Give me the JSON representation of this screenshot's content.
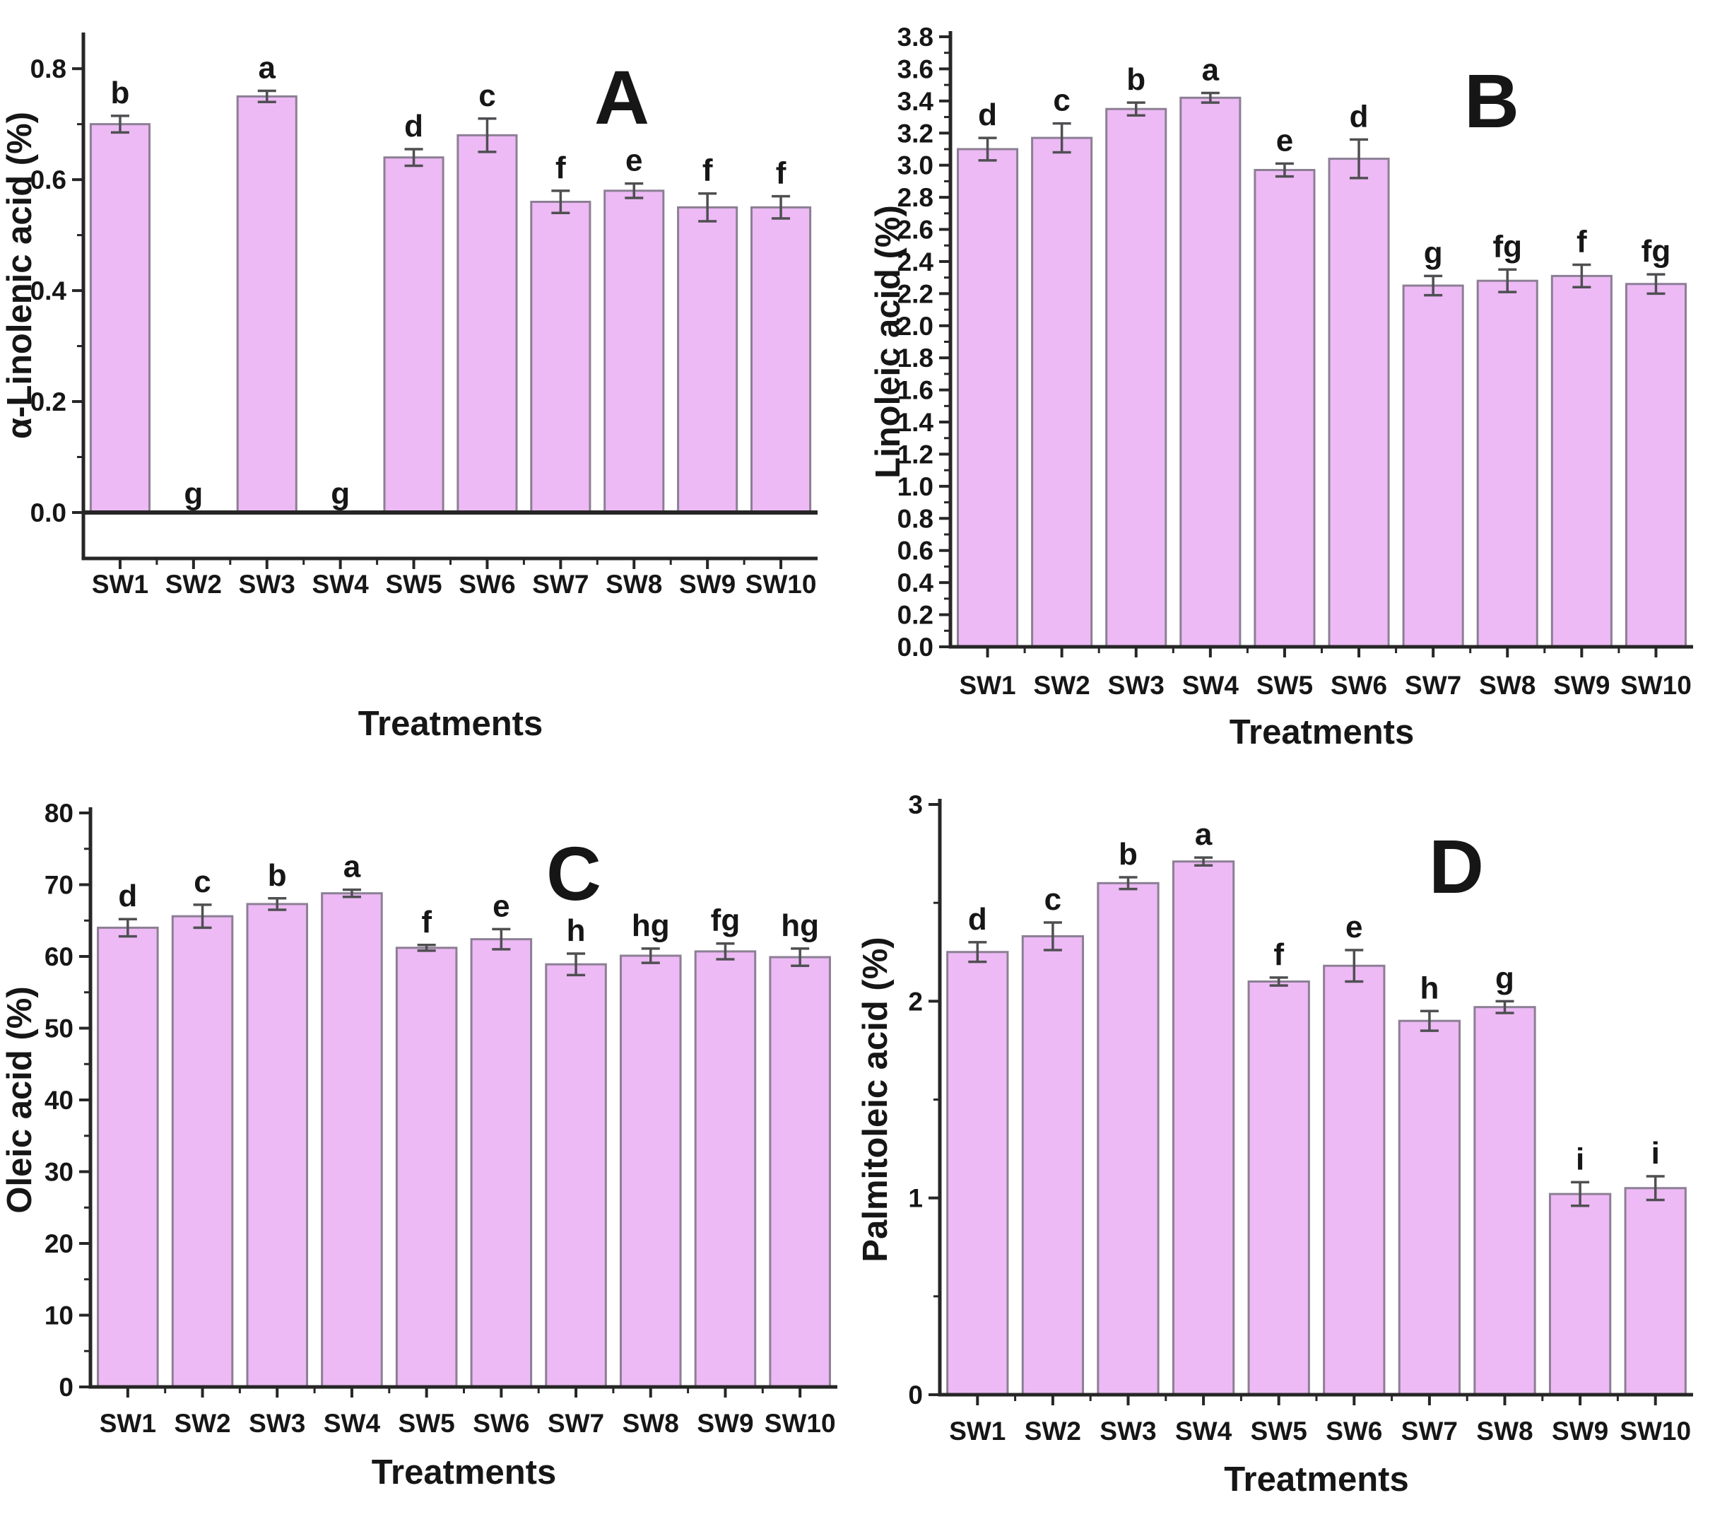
{
  "figure": {
    "description": "Four-panel bar chart figure of fatty acid composition under different treatments",
    "x_axis_title": "Treatments",
    "categories": [
      "SW1",
      "SW2",
      "SW3",
      "SW4",
      "SW5",
      "SW6",
      "SW7",
      "SW8",
      "SW9",
      "SW10"
    ]
  },
  "style": {
    "bar_fill": "#edbaf5",
    "bar_stroke": "#8c7f94",
    "error_color": "#4f4f52",
    "axis_color": "#262626",
    "text_color": "#161616"
  },
  "chart_data": [
    {
      "id": "A",
      "type": "bar",
      "panel_label": "A",
      "ylabel": "α-Linolenic acid (%)",
      "xlabel": "Treatments",
      "categories": [
        "SW1",
        "SW2",
        "SW3",
        "SW4",
        "SW5",
        "SW6",
        "SW7",
        "SW8",
        "SW9",
        "SW10"
      ],
      "values": [
        0.7,
        0,
        0.75,
        0,
        0.64,
        0.68,
        0.56,
        0.58,
        0.55,
        0.55
      ],
      "errors": [
        0.015,
        0,
        0.01,
        0,
        0.015,
        0.03,
        0.02,
        0.013,
        0.025,
        0.02
      ],
      "sig_letters": [
        "b",
        "g",
        "a",
        "g",
        "d",
        "c",
        "f",
        "e",
        "f",
        "f"
      ],
      "ylim": [
        -0.083,
        0.855
      ],
      "yticks": [
        0.0,
        0.2,
        0.4,
        0.6,
        0.8
      ],
      "ytick_decimals": 1,
      "yminor_step": 0.1,
      "zero_line": true,
      "grid": false,
      "legend": "none"
    },
    {
      "id": "B",
      "type": "bar",
      "panel_label": "B",
      "ylabel": "Linoleic acid (%)",
      "xlabel": "Treatments",
      "categories": [
        "SW1",
        "SW2",
        "SW3",
        "SW4",
        "SW5",
        "SW6",
        "SW7",
        "SW8",
        "SW9",
        "SW10"
      ],
      "values": [
        3.1,
        3.17,
        3.35,
        3.42,
        2.97,
        3.04,
        2.25,
        2.28,
        2.31,
        2.26
      ],
      "errors": [
        0.07,
        0.09,
        0.04,
        0.03,
        0.04,
        0.12,
        0.06,
        0.07,
        0.07,
        0.06
      ],
      "sig_letters": [
        "d",
        "c",
        "b",
        "a",
        "e",
        "d",
        "g",
        "fg",
        "f",
        "fg"
      ],
      "ylim": [
        0,
        3.8
      ],
      "yticks": [
        0.0,
        0.2,
        0.4,
        0.6,
        0.8,
        1.0,
        1.2,
        1.4,
        1.6,
        1.8,
        2.0,
        2.2,
        2.4,
        2.6,
        2.8,
        3.0,
        3.2,
        3.4,
        3.6,
        3.8
      ],
      "ytick_decimals": 1,
      "yminor_step": 0.1,
      "zero_line": false,
      "grid": false,
      "legend": "none"
    },
    {
      "id": "C",
      "type": "bar",
      "panel_label": "C",
      "ylabel": "Oleic acid (%)",
      "xlabel": "Treatments",
      "categories": [
        "SW1",
        "SW2",
        "SW3",
        "SW4",
        "SW5",
        "SW6",
        "SW7",
        "SW8",
        "SW9",
        "SW10"
      ],
      "values": [
        64.0,
        65.6,
        67.3,
        68.8,
        61.2,
        62.4,
        58.9,
        60.1,
        60.7,
        59.9
      ],
      "errors": [
        1.2,
        1.6,
        0.8,
        0.5,
        0.4,
        1.4,
        1.5,
        1.0,
        1.1,
        1.2
      ],
      "sig_letters": [
        "d",
        "c",
        "b",
        "a",
        "f",
        "e",
        "h",
        "hg",
        "fg",
        "hg"
      ],
      "ylim": [
        0,
        80
      ],
      "yticks": [
        0,
        10,
        20,
        30,
        40,
        50,
        60,
        70,
        80
      ],
      "ytick_decimals": 0,
      "yminor_step": 5,
      "zero_line": false,
      "grid": false,
      "legend": "none"
    },
    {
      "id": "D",
      "type": "bar",
      "panel_label": "D",
      "ylabel": "Palmitoleic acid (%)",
      "xlabel": "Treatments",
      "categories": [
        "SW1",
        "SW2",
        "SW3",
        "SW4",
        "SW5",
        "SW6",
        "SW7",
        "SW8",
        "SW9",
        "SW10"
      ],
      "values": [
        2.25,
        2.33,
        2.6,
        2.71,
        2.1,
        2.18,
        1.9,
        1.97,
        1.02,
        1.05
      ],
      "errors": [
        0.05,
        0.07,
        0.03,
        0.02,
        0.02,
        0.08,
        0.05,
        0.03,
        0.06,
        0.06
      ],
      "sig_letters": [
        "d",
        "c",
        "b",
        "a",
        "f",
        "e",
        "h",
        "g",
        "i",
        "i"
      ],
      "ylim": [
        0,
        3.0
      ],
      "yticks": [
        0,
        1,
        2,
        3
      ],
      "ytick_decimals": 0,
      "yminor_step": 0.5,
      "zero_line": false,
      "grid": false,
      "legend": "none"
    }
  ]
}
